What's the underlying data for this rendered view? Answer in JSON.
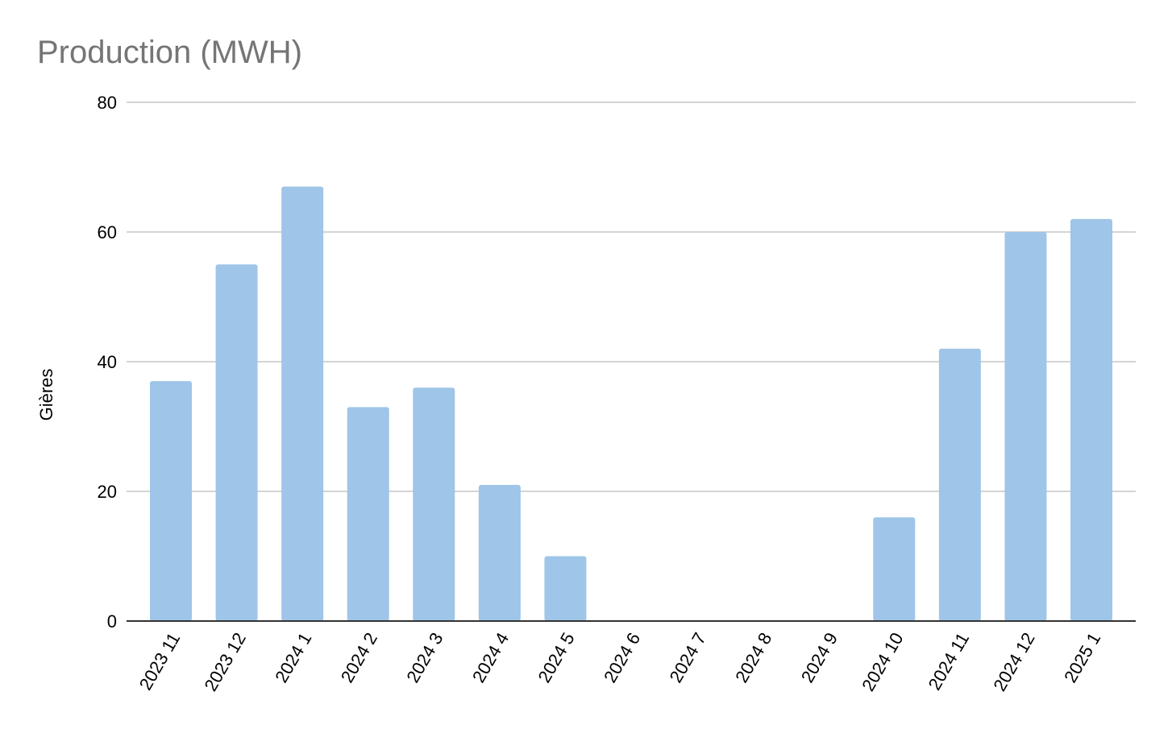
{
  "chart_data": {
    "type": "bar",
    "title": "Production (MWH)",
    "xlabel": "",
    "ylabel": "Gières",
    "categories": [
      "2023 11",
      "2023 12",
      "2024 1",
      "2024 2",
      "2024 3",
      "2024 4",
      "2024 5",
      "2024 6",
      "2024 7",
      "2024 8",
      "2024 9",
      "2024 10",
      "2024 11",
      "2024 12",
      "2025 1"
    ],
    "series": [
      {
        "values": [
          37,
          55,
          67,
          33,
          36,
          21,
          10,
          0,
          0,
          0,
          0,
          16,
          42,
          60,
          62
        ],
        "color": "#9fc5e8"
      }
    ],
    "ylim": [
      0,
      80
    ],
    "yticks": [
      0,
      20,
      40,
      60,
      80
    ],
    "grid": true,
    "legend": "none"
  }
}
